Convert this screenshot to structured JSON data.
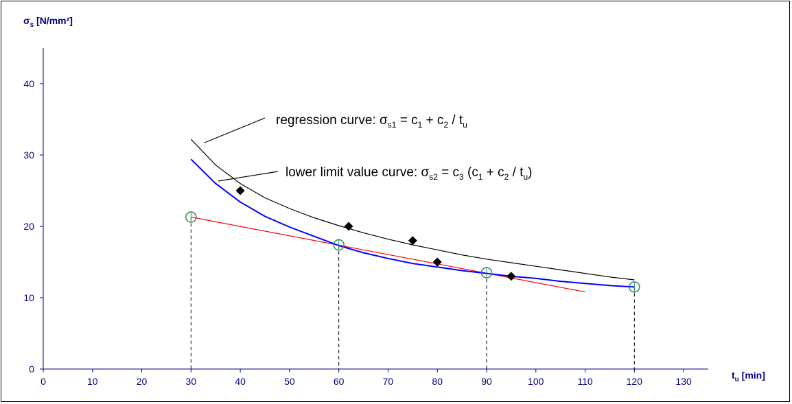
{
  "chart_data": {
    "type": "scatter",
    "title": "",
    "xlabel": {
      "main": "t",
      "sub": "u",
      "unit": " [min]"
    },
    "ylabel": {
      "main": "σ",
      "sub": "s",
      "unit": " [N/mm²]"
    },
    "xlim": [
      0,
      135
    ],
    "ylim": [
      0,
      45
    ],
    "x_ticks": [
      0,
      10,
      20,
      30,
      40,
      50,
      60,
      70,
      80,
      90,
      100,
      110,
      120,
      130
    ],
    "y_ticks": [
      0,
      10,
      20,
      30,
      40
    ],
    "grid": false,
    "legend": "none",
    "colors": {
      "axis": "#000080",
      "regression": "#000000",
      "lower_limit": "#0000ff",
      "linear": "#ff0000",
      "circles": "#2e8b57",
      "diamonds": "#000000",
      "dropdown_lines": "#000000"
    },
    "series": [
      {
        "key": "regression",
        "kind": "line",
        "values": [
          [
            30,
            32.2
          ],
          [
            35,
            28.6
          ],
          [
            40,
            26.0
          ],
          [
            45,
            24.0
          ],
          [
            50,
            22.5
          ],
          [
            55,
            21.2
          ],
          [
            60,
            20.1
          ],
          [
            65,
            19.1
          ],
          [
            70,
            18.2
          ],
          [
            75,
            17.4
          ],
          [
            80,
            16.7
          ],
          [
            85,
            16.0
          ],
          [
            90,
            15.4
          ],
          [
            95,
            14.9
          ],
          [
            100,
            14.4
          ],
          [
            105,
            13.9
          ],
          [
            110,
            13.4
          ],
          [
            115,
            12.9
          ],
          [
            120,
            12.5
          ]
        ]
      },
      {
        "key": "lower_limit",
        "kind": "line",
        "values": [
          [
            30,
            29.4
          ],
          [
            35,
            26.0
          ],
          [
            40,
            23.4
          ],
          [
            45,
            21.4
          ],
          [
            50,
            19.9
          ],
          [
            55,
            18.6
          ],
          [
            60,
            17.3
          ],
          [
            65,
            16.3
          ],
          [
            70,
            15.5
          ],
          [
            75,
            14.8
          ],
          [
            80,
            14.3
          ],
          [
            85,
            13.8
          ],
          [
            90,
            13.4
          ],
          [
            95,
            13.0
          ],
          [
            100,
            12.7
          ],
          [
            105,
            12.3
          ],
          [
            110,
            12.0
          ],
          [
            115,
            11.7
          ],
          [
            120,
            11.5
          ]
        ]
      },
      {
        "key": "linear",
        "kind": "line",
        "values": [
          [
            30,
            21.3
          ],
          [
            110,
            10.8
          ]
        ]
      },
      {
        "key": "circles",
        "kind": "marker-circle",
        "values": [
          [
            30,
            21.3
          ],
          [
            60,
            17.4
          ],
          [
            90,
            13.5
          ],
          [
            120,
            11.5
          ]
        ]
      },
      {
        "key": "diamonds",
        "kind": "marker-diamond",
        "values": [
          [
            40,
            25
          ],
          [
            62,
            20
          ],
          [
            75,
            18
          ],
          [
            80,
            15
          ],
          [
            95,
            13
          ]
        ]
      }
    ],
    "dropdown_x": [
      30,
      60,
      90,
      120
    ],
    "annotations": {
      "regression": {
        "prefix": "regression curve: ",
        "sym": "σ",
        "sym_sub": "s1",
        "mid1": " = c",
        "s1": "1",
        "mid2": " + c",
        "s2": "2",
        "mid3": " / t",
        "s3": "u",
        "tail": ""
      },
      "lower_limit": {
        "prefix": "lower limit value curve: ",
        "sym": "σ",
        "sym_sub": "s2",
        "mid0": " = c",
        "s0": "3",
        "mid1": " (c",
        "s1": "1",
        "mid2": " + c",
        "s2": "2",
        "mid3": " / t",
        "s3": "u",
        "tail": ")"
      }
    }
  }
}
